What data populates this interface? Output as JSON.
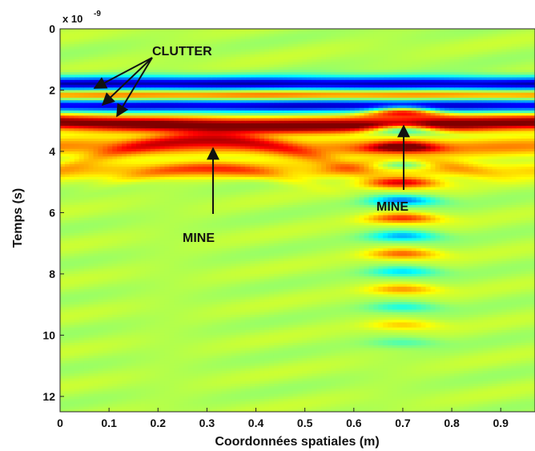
{
  "chart_data": {
    "type": "heatmap",
    "title": "",
    "xlabel": "Coordonnées spatiales (m)",
    "ylabel": "Temps (s)",
    "y_multiplier": "x 10",
    "y_multiplier_exp": "-9",
    "xlim": [
      0,
      0.97
    ],
    "ylim": [
      0,
      12.5
    ],
    "y_reversed": true,
    "x_ticks": [
      "0",
      "0.1",
      "0.2",
      "0.3",
      "0.4",
      "0.5",
      "0.6",
      "0.7",
      "0.8",
      "0.9"
    ],
    "x_tick_values": [
      0,
      0.1,
      0.2,
      0.3,
      0.4,
      0.5,
      0.6,
      0.7,
      0.8,
      0.9
    ],
    "y_ticks": [
      "0",
      "2",
      "4",
      "6",
      "8",
      "10",
      "12"
    ],
    "y_tick_values": [
      0,
      2,
      4,
      6,
      8,
      10,
      12
    ],
    "colormap": "jet",
    "colors": {
      "background": "#b2e066",
      "blue": "#0a2fd9",
      "red": "#d71a0a"
    },
    "annotations": [
      {
        "text": "CLUTTER",
        "x": 0.26,
        "y": 0.7
      },
      {
        "text": "MINE",
        "x": 0.3,
        "y": 6.8
      },
      {
        "text": "MINE",
        "x": 0.69,
        "y": 5.9
      }
    ],
    "features": [
      {
        "kind": "clutter-band",
        "time": 1.8,
        "polarity": "negative"
      },
      {
        "kind": "clutter-band",
        "time": 2.5,
        "polarity": "negative"
      },
      {
        "kind": "clutter-band",
        "time": 3.05,
        "polarity": "positive"
      },
      {
        "kind": "mine-hyperbola",
        "x": 0.3,
        "apex_time": 3.6
      },
      {
        "kind": "mine-hyperbola",
        "x": 0.7,
        "apex_time": 2.7
      }
    ]
  }
}
